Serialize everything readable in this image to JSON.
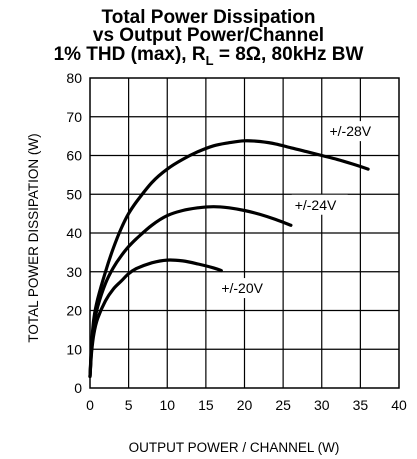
{
  "title_lines": [
    "Total Power Dissipation",
    "vs Output Power/Channel"
  ],
  "title_line3": {
    "prefix": "1% THD (max), R",
    "subscript": "L",
    "suffix": " = 8Ω, 80kHz BW"
  },
  "chart_data": {
    "type": "line",
    "title": "Total Power Dissipation vs Output Power/Channel 1% THD (max), RL = 8Ω, 80kHz BW",
    "xlabel": "OUTPUT POWER / CHANNEL (W)",
    "ylabel": "TOTAL POWER DISSIPATION (W)",
    "xlim": [
      0,
      40
    ],
    "ylim": [
      0,
      80
    ],
    "xticks": [
      0,
      5,
      10,
      15,
      20,
      25,
      30,
      35,
      40
    ],
    "yticks": [
      0,
      10,
      20,
      30,
      40,
      50,
      60,
      70,
      80
    ],
    "grid": true,
    "series": [
      {
        "name": "+/-28V",
        "x": [
          0,
          0.2,
          0.5,
          1,
          2,
          3,
          4,
          5,
          6,
          8,
          10,
          12,
          14,
          16,
          18,
          20,
          22,
          24,
          26,
          28,
          30,
          32,
          34,
          36
        ],
        "y": [
          3,
          11,
          18,
          23,
          30,
          36,
          41,
          45,
          48,
          53,
          56.5,
          59,
          61,
          62.5,
          63.3,
          63.8,
          63.6,
          63,
          62,
          61,
          60,
          59,
          57.8,
          56.5
        ]
      },
      {
        "name": "+/-24V",
        "x": [
          0,
          0.2,
          0.5,
          1,
          2,
          3,
          4,
          5,
          6,
          8,
          10,
          12,
          14,
          16,
          18,
          20,
          22,
          24,
          26
        ],
        "y": [
          3,
          10,
          16,
          21,
          27,
          31,
          34,
          36.5,
          38.5,
          42,
          44.5,
          45.8,
          46.5,
          46.8,
          46.5,
          45.8,
          44.8,
          43.5,
          42
        ]
      },
      {
        "name": "+/-20V",
        "x": [
          0,
          0.2,
          0.5,
          1,
          2,
          3,
          4,
          5,
          6,
          8,
          10,
          12,
          14,
          16,
          17
        ],
        "y": [
          3,
          9,
          14,
          18,
          22.5,
          25.5,
          27.5,
          29.5,
          30.8,
          32.3,
          33,
          32.8,
          32,
          31,
          30.3
        ]
      }
    ],
    "annotations": [
      {
        "text": "+/-28V",
        "x": 31,
        "y": 65
      },
      {
        "text": "+/-24V",
        "x": 26.5,
        "y": 46
      },
      {
        "text": "+/-20V",
        "x": 17,
        "y": 24.5
      }
    ]
  }
}
